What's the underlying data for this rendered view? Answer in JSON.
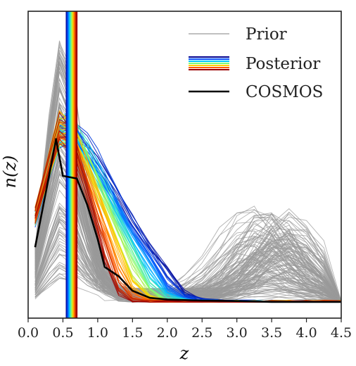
{
  "chart_data": {
    "type": "line",
    "xlabel": "z",
    "ylabel": "n(z)",
    "xlim": [
      0.0,
      4.5
    ],
    "ylim": [
      0.0,
      1.05
    ],
    "x_ticks": [
      "0.0",
      "0.5",
      "1.0",
      "1.5",
      "2.0",
      "2.5",
      "3.0",
      "3.5",
      "4.0",
      "4.5"
    ],
    "grid": false,
    "legend_position": "top-right",
    "legend": [
      {
        "label": "Prior",
        "style": "single",
        "colors": [
          "#9a9a9a"
        ]
      },
      {
        "label": "Posterior",
        "style": "rainbow",
        "colors": [
          "#00008f",
          "#0050ff",
          "#00c8ff",
          "#7dff7a",
          "#ffd200",
          "#ff5a00",
          "#9a0000"
        ]
      },
      {
        "label": "COSMOS",
        "style": "single",
        "colors": [
          "#000000"
        ]
      }
    ],
    "z_grid": [
      0.1,
      0.3,
      0.45,
      0.55,
      0.7,
      0.85,
      1.0,
      1.1,
      1.3,
      1.5,
      1.75,
      2.0,
      2.25,
      2.5,
      2.75,
      3.0,
      3.25,
      3.5,
      3.75,
      4.0,
      4.25,
      4.5
    ],
    "series": [
      {
        "name": "Prior",
        "color": "#9a9a9a",
        "count": 140,
        "shape": "bimodal",
        "low_peak_z": [
          0.4,
          0.45
        ],
        "low_peak_height": [
          0.05,
          1.0
        ],
        "high_peak_z": [
          3.1,
          3.9
        ],
        "high_peak_height": [
          0.0,
          0.35
        ]
      },
      {
        "name": "Posterior",
        "colormap": [
          "#00008f",
          "#0050ff",
          "#00c8ff",
          "#7dff7a",
          "#ffd200",
          "#ff5a00",
          "#9a0000"
        ],
        "count": 70,
        "peak_z": 0.45,
        "peak_height": [
          0.6,
          0.72
        ],
        "tail_z": [
          1.0,
          2.0
        ]
      },
      {
        "name": "COSMOS",
        "color": "#000000",
        "x": [
          0.1,
          0.3,
          0.4,
          0.5,
          0.7,
          0.85,
          1.0,
          1.1,
          1.3,
          1.5,
          1.75,
          2.0,
          2.5,
          3.0,
          3.5,
          4.0,
          4.5
        ],
        "y": [
          0.21,
          0.48,
          0.62,
          0.48,
          0.47,
          0.37,
          0.24,
          0.135,
          0.1,
          0.045,
          0.018,
          0.012,
          0.008,
          0.006,
          0.003,
          0.003,
          0.003
        ]
      }
    ],
    "vertical_bands": {
      "colormap": [
        "#00008f",
        "#0050ff",
        "#00c8ff",
        "#7dff7a",
        "#ffd200",
        "#ff5a00",
        "#9a0000"
      ],
      "z_range": [
        0.55,
        0.7
      ]
    }
  }
}
